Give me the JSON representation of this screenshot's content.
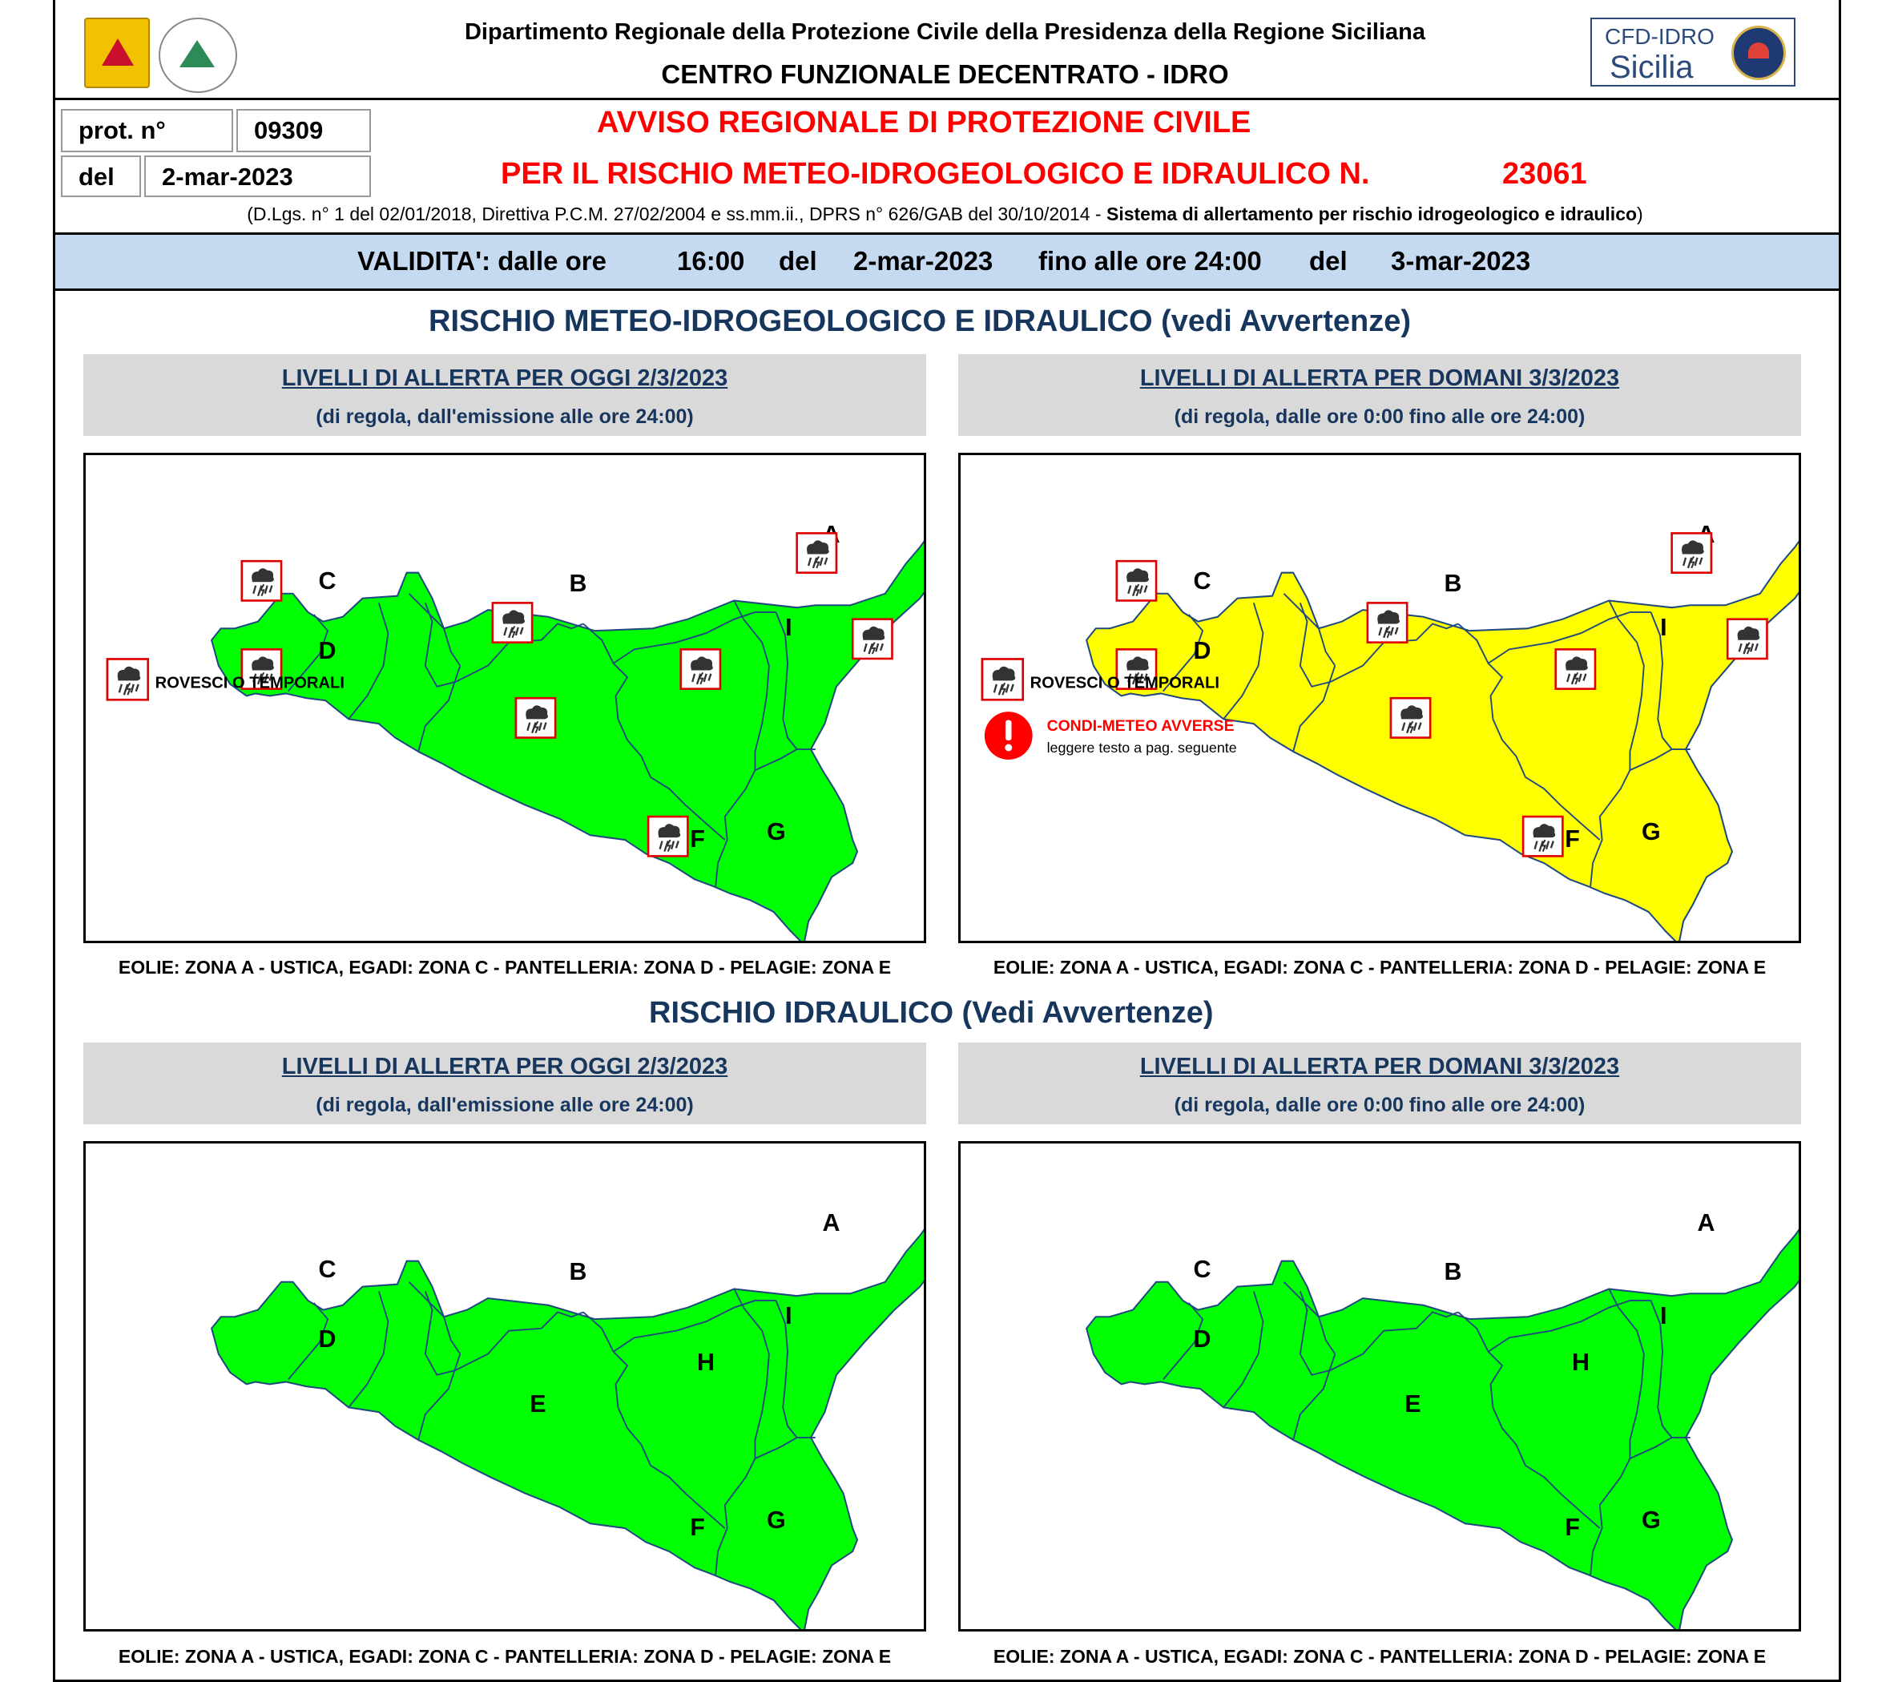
{
  "header": {
    "department": "Dipartimento Regionale della Protezione Civile della Presidenza della Regione Siciliana",
    "centre": "CENTRO FUNZIONALE DECENTRATO - IDRO",
    "logo_badge": {
      "line1": "CFD-IDRO",
      "line2": "Sicilia"
    }
  },
  "protocol": {
    "prot_label": "prot. n°",
    "prot_value": "09309",
    "del_label": "del",
    "del_value": "2-mar-2023"
  },
  "notice": {
    "title_line1": "AVVISO REGIONALE DI PROTEZIONE CIVILE",
    "title_line2": "PER IL RISCHIO METEO-IDROGEOLOGICO E IDRAULICO N.",
    "number": "23061",
    "legal_ref": "(D.Lgs. n° 1 del 02/01/2018, Direttiva P.C.M. 27/02/2004 e ss.mm.ii., DPRS n° 626/GAB del 30/10/2014 - ",
    "legal_ref_bold": "Sistema di allertamento per rischio idrogeologico e idraulico",
    "legal_ref_end": ")"
  },
  "validity": {
    "label": "VALIDITA': dalle ore",
    "from_time": "16:00",
    "del1": "del",
    "from_date": "2-mar-2023",
    "until": "fino alle ore 24:00",
    "del2": "del",
    "to_date": "3-mar-2023"
  },
  "sections": {
    "meteo_title": "RISCHIO METEO-IDROGEOLOGICO E IDRAULICO (vedi Avvertenze)",
    "idraulico_title": "RISCHIO IDRAULICO (Vedi Avvertenze)"
  },
  "panels": {
    "today_head": "LIVELLI DI ALLERTA PER OGGI 2/3/2023",
    "today_sub": "(di regola, dall'emissione alle ore 24:00)",
    "tomorrow_head": "LIVELLI DI ALLERTA PER DOMANI 3/3/2023",
    "tomorrow_sub": "(di regola, dalle ore 0:00 fino alle ore 24:00)",
    "islands_note": "EOLIE: ZONA A - USTICA, EGADI: ZONA C - PANTELLERIA: ZONA D - PELAGIE: ZONA E"
  },
  "maps": {
    "zone_labels": [
      "A",
      "B",
      "C",
      "D",
      "E",
      "F",
      "G",
      "H",
      "I"
    ],
    "meteo_today_color": "#00ff00",
    "meteo_tomorrow_color": "#ffff00",
    "idraulico_today_color": "#00ff00",
    "idraulico_tomorrow_color": "#00ff00",
    "legend_storm": "ROVESCI O TEMPORALI",
    "legend_storm_icon": "storm-icon",
    "adverse_title": "CONDI-METEO AVVERSE",
    "adverse_text": "leggere testo a pag. seguente",
    "adverse_icon": "exclamation-icon"
  }
}
